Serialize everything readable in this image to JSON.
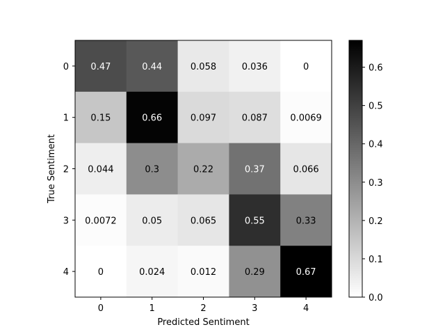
{
  "chart_data": {
    "type": "heatmap",
    "title": "",
    "xlabel": "Predicted Sentiment",
    "ylabel": "True Sentiment",
    "x_categories": [
      "0",
      "1",
      "2",
      "3",
      "4"
    ],
    "y_categories": [
      "0",
      "1",
      "2",
      "3",
      "4"
    ],
    "values": [
      [
        0.47,
        0.44,
        0.058,
        0.036,
        0
      ],
      [
        0.15,
        0.66,
        0.097,
        0.087,
        0.0069
      ],
      [
        0.044,
        0.3,
        0.22,
        0.37,
        0.066
      ],
      [
        0.0072,
        0.05,
        0.065,
        0.55,
        0.33
      ],
      [
        0,
        0.024,
        0.012,
        0.29,
        0.67
      ]
    ],
    "colormap": "Greys",
    "color_range": [
      0,
      0.67
    ],
    "colorbar_ticks": [
      "0.0",
      "0.1",
      "0.2",
      "0.3",
      "0.4",
      "0.5",
      "0.6"
    ],
    "colors": {
      "low": "#ffffff",
      "high": "#000000",
      "text_dark": "#000000",
      "text_light": "#ffffff"
    }
  }
}
